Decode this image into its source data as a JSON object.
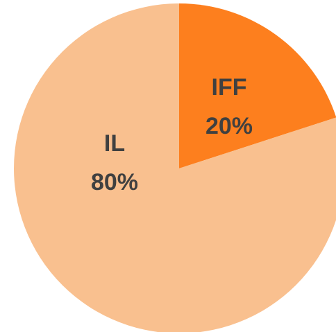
{
  "chart_data": {
    "type": "pie",
    "categories": [
      "IFF",
      "IL"
    ],
    "values": [
      20,
      80
    ],
    "value_labels": [
      "20%",
      "80%"
    ],
    "colors": [
      "#fd7f1e",
      "#f9c08f"
    ]
  }
}
